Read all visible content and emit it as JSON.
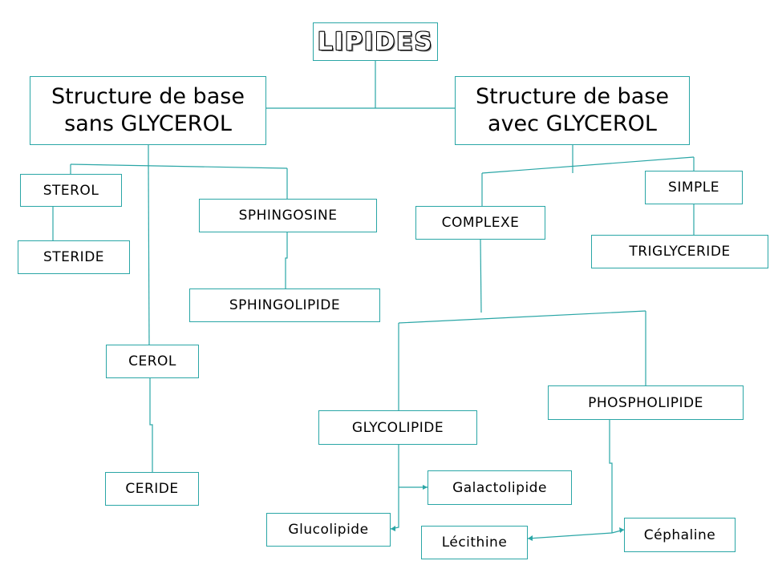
{
  "colors": {
    "line": "#2aa6a6",
    "border": "#2aa6a6",
    "text": "#000000",
    "background": "#ffffff"
  },
  "nodes": {
    "lipides": "LIPIDES",
    "sans_glycerol": {
      "line1": "Structure de base",
      "line2": "sans GLYCEROL"
    },
    "avec_glycerol": {
      "line1": "Structure de base",
      "line2": "avec GLYCEROL"
    },
    "sterol": "STEROL",
    "steride": "STERIDE",
    "sphingosine": "SPHINGOSINE",
    "sphingolipide": "SPHINGOLIPIDE",
    "cerol": "CEROL",
    "ceride": "CERIDE",
    "simple": "SIMPLE",
    "triglyceride": "TRIGLYCERIDE",
    "complexe": "COMPLEXE",
    "phospholipide": "PHOSPHOLIPIDE",
    "glycolipide": "GLYCOLIPIDE",
    "galactolipide": "Galactolipide",
    "glucolipide": "Glucolipide",
    "lecithine": "Lécithine",
    "cephaline": "Céphaline"
  }
}
